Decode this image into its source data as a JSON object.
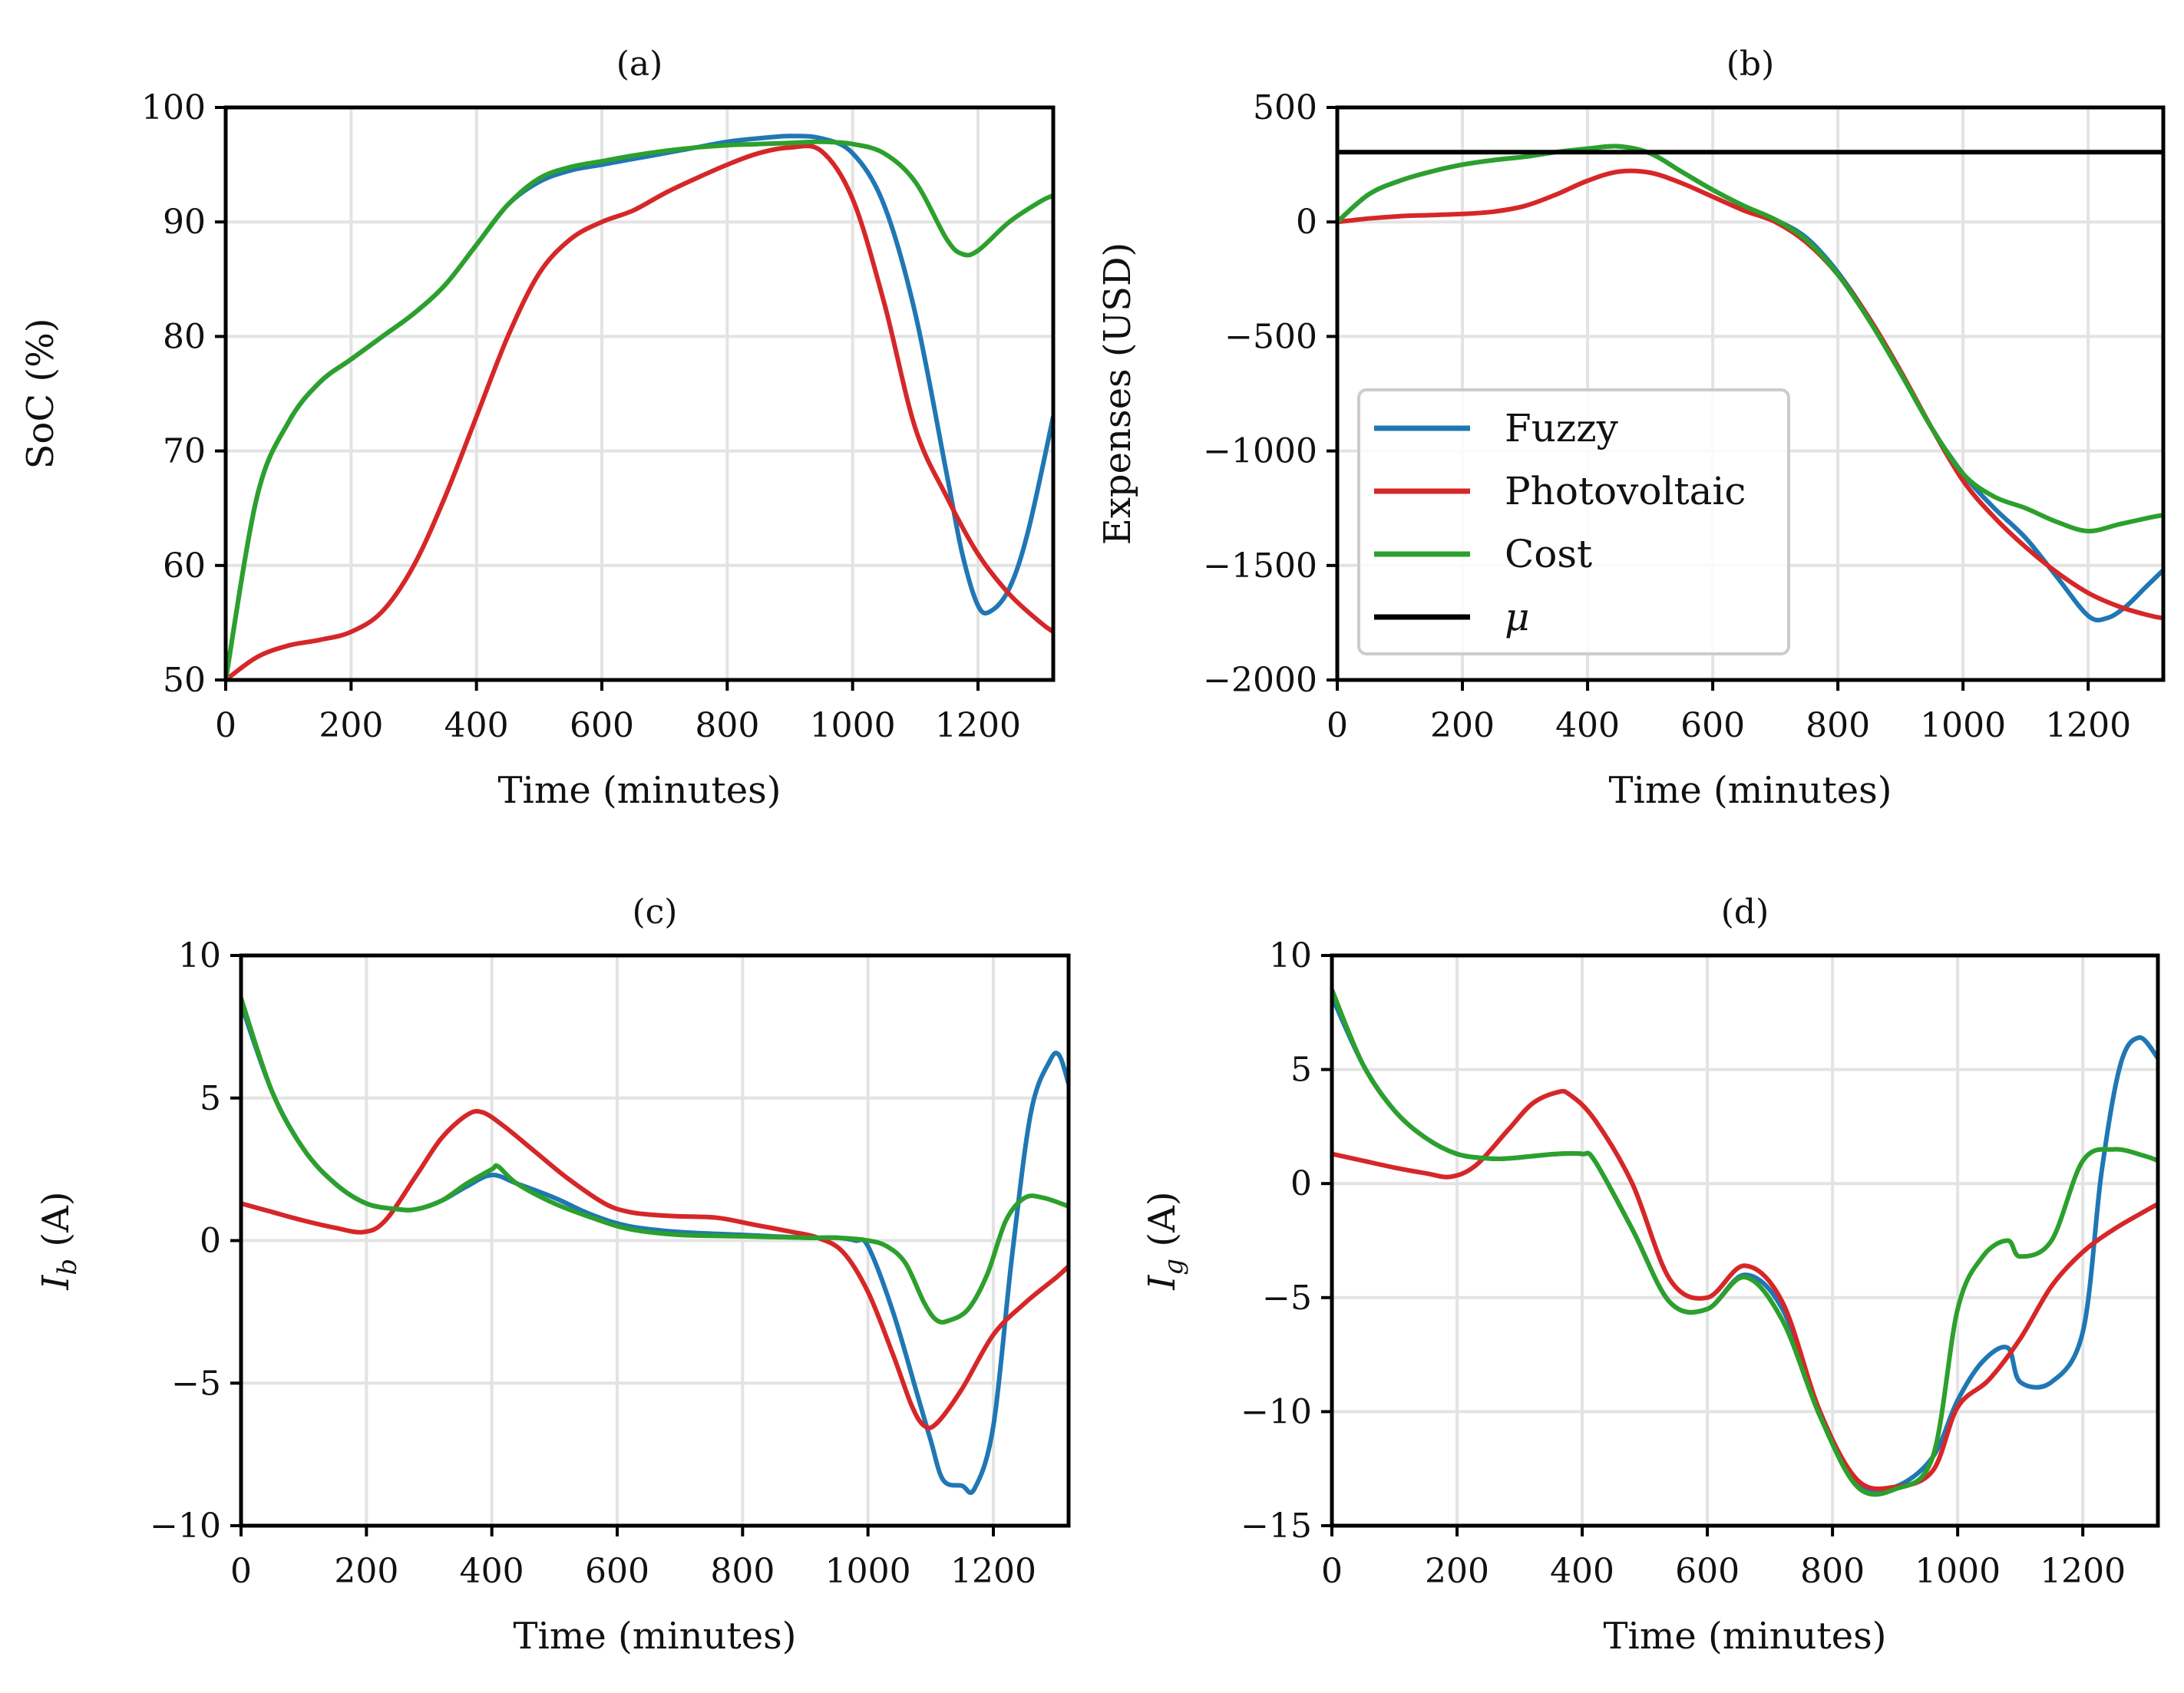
{
  "figure": {
    "type": "multi-panel line charts"
  },
  "colors": {
    "Fuzzy": "#1f77b4",
    "Photovoltaic": "#d62728",
    "Cost": "#2ca02c",
    "mu": "#000000"
  },
  "chart_data": [
    {
      "id": "a",
      "type": "line",
      "title": "(a)",
      "xlabel": "Time (minutes)",
      "ylabel": "SoC (%)",
      "xlim": [
        0,
        1320
      ],
      "ylim": [
        50,
        100
      ],
      "xticks": [
        0,
        200,
        400,
        600,
        800,
        1000,
        1200
      ],
      "yticks": [
        50,
        60,
        70,
        80,
        90,
        100
      ],
      "ytick_labels": [
        "50",
        "60",
        "70",
        "80",
        "90",
        "100"
      ],
      "grid": true,
      "series": [
        {
          "name": "Fuzzy",
          "color": "#1f77b4",
          "x": [
            0,
            50,
            100,
            150,
            200,
            250,
            300,
            350,
            400,
            450,
            500,
            550,
            600,
            650,
            700,
            750,
            800,
            850,
            900,
            950,
            1000,
            1050,
            1100,
            1150,
            1175,
            1200,
            1220,
            1250,
            1280,
            1320
          ],
          "y": [
            50,
            66,
            72.5,
            76,
            78,
            80,
            82,
            84.5,
            88,
            91.5,
            93.5,
            94.5,
            95,
            95.5,
            96,
            96.5,
            97,
            97.3,
            97.5,
            97.3,
            96,
            91.5,
            82,
            68,
            61,
            56.5,
            56,
            58,
            63,
            73
          ]
        },
        {
          "name": "Photovoltaic",
          "color": "#d62728",
          "x": [
            0,
            50,
            100,
            150,
            200,
            250,
            300,
            350,
            400,
            450,
            500,
            550,
            600,
            650,
            700,
            750,
            800,
            850,
            900,
            950,
            1000,
            1050,
            1100,
            1150,
            1200,
            1250,
            1300,
            1320
          ],
          "y": [
            50,
            52,
            53,
            53.5,
            54.2,
            56,
            60,
            66,
            73,
            80,
            85.5,
            88.5,
            90,
            91,
            92.5,
            93.8,
            95,
            96,
            96.5,
            96.2,
            92,
            83,
            72,
            66,
            61,
            57.5,
            55,
            54.2
          ]
        },
        {
          "name": "Cost",
          "color": "#2ca02c",
          "x": [
            0,
            50,
            100,
            150,
            200,
            250,
            300,
            350,
            400,
            450,
            500,
            550,
            600,
            650,
            700,
            750,
            800,
            850,
            900,
            950,
            1000,
            1050,
            1100,
            1150,
            1175,
            1200,
            1250,
            1300,
            1320
          ],
          "y": [
            50,
            66,
            72.5,
            76,
            78,
            80,
            82,
            84.5,
            88,
            91.5,
            93.8,
            94.8,
            95.3,
            95.8,
            96.2,
            96.5,
            96.7,
            96.8,
            96.9,
            97,
            96.8,
            96,
            93.5,
            88.5,
            87.2,
            87.5,
            90,
            91.8,
            92.3
          ]
        }
      ]
    },
    {
      "id": "b",
      "type": "line",
      "title": "(b)",
      "xlabel": "Time (minutes)",
      "ylabel": "Expenses (USD)",
      "xlim": [
        0,
        1320
      ],
      "ylim": [
        -2000,
        500
      ],
      "xticks": [
        0,
        200,
        400,
        600,
        800,
        1000,
        1200
      ],
      "yticks": [
        -2000,
        -1500,
        -1000,
        -500,
        0,
        500
      ],
      "ytick_labels": [
        "−2000",
        "−1500",
        "−1000",
        "−500",
        "0",
        "500"
      ],
      "grid": true,
      "legend": {
        "location": "lower-left",
        "entries": [
          "Fuzzy",
          "Photovoltaic",
          "Cost",
          "μ"
        ]
      },
      "series": [
        {
          "name": "Fuzzy",
          "color": "#1f77b4",
          "x": [
            0,
            50,
            100,
            150,
            200,
            250,
            300,
            350,
            400,
            450,
            500,
            550,
            600,
            650,
            700,
            750,
            800,
            850,
            900,
            950,
            1000,
            1050,
            1100,
            1150,
            1200,
            1230,
            1260,
            1290,
            1320
          ],
          "y": [
            0,
            120,
            180,
            220,
            250,
            270,
            285,
            305,
            320,
            330,
            300,
            220,
            140,
            70,
            10,
            -70,
            -220,
            -420,
            -650,
            -900,
            -1100,
            -1250,
            -1380,
            -1550,
            -1720,
            -1730,
            -1680,
            -1600,
            -1520
          ]
        },
        {
          "name": "Photovoltaic",
          "color": "#d62728",
          "x": [
            0,
            50,
            100,
            150,
            200,
            250,
            300,
            350,
            400,
            450,
            500,
            550,
            600,
            650,
            700,
            750,
            800,
            850,
            900,
            950,
            1000,
            1050,
            1100,
            1150,
            1200,
            1250,
            1300,
            1320
          ],
          "y": [
            0,
            15,
            25,
            30,
            35,
            45,
            70,
            120,
            180,
            220,
            215,
            170,
            110,
            50,
            0,
            -90,
            -230,
            -420,
            -650,
            -900,
            -1130,
            -1290,
            -1420,
            -1530,
            -1620,
            -1680,
            -1720,
            -1730
          ]
        },
        {
          "name": "Cost",
          "color": "#2ca02c",
          "x": [
            0,
            50,
            100,
            150,
            200,
            250,
            300,
            350,
            400,
            450,
            500,
            550,
            600,
            650,
            700,
            750,
            800,
            850,
            900,
            950,
            1000,
            1050,
            1100,
            1150,
            1200,
            1250,
            1300,
            1320
          ],
          "y": [
            0,
            120,
            180,
            220,
            250,
            270,
            285,
            305,
            320,
            330,
            300,
            220,
            140,
            70,
            10,
            -80,
            -230,
            -430,
            -660,
            -900,
            -1100,
            -1200,
            -1250,
            -1310,
            -1350,
            -1320,
            -1290,
            -1280
          ]
        },
        {
          "name": "μ",
          "color": "#000000",
          "x": [
            0,
            1320
          ],
          "y": [
            305,
            305
          ]
        }
      ]
    },
    {
      "id": "c",
      "type": "line",
      "title": "(c)",
      "xlabel": "Time (minutes)",
      "ylabel_main": "I",
      "ylabel_sub": "b",
      "ylabel_unit": " (A)",
      "xlim": [
        0,
        1320
      ],
      "ylim": [
        -10,
        10
      ],
      "xticks": [
        0,
        200,
        400,
        600,
        800,
        1000,
        1200
      ],
      "yticks": [
        -10,
        -5,
        0,
        5,
        10
      ],
      "ytick_labels": [
        "−10",
        "−5",
        "0",
        "5",
        "10"
      ],
      "grid": true,
      "series": [
        {
          "name": "Fuzzy",
          "color": "#1f77b4",
          "x": [
            0,
            50,
            100,
            150,
            200,
            250,
            280,
            320,
            360,
            400,
            440,
            500,
            560,
            620,
            700,
            800,
            900,
            950,
            980,
            1000,
            1040,
            1080,
            1100,
            1120,
            1150,
            1170,
            1200,
            1230,
            1260,
            1290,
            1305,
            1320
          ],
          "y": [
            8.3,
            5.2,
            3.2,
            2,
            1.3,
            1.1,
            1.1,
            1.4,
            1.9,
            2.3,
            2,
            1.5,
            0.9,
            0.5,
            0.3,
            0.2,
            0.1,
            0.1,
            0,
            -0.2,
            -2.5,
            -5.5,
            -7,
            -8.4,
            -8.6,
            -8.7,
            -6.5,
            -0.5,
            4.5,
            6.3,
            6.5,
            5.5
          ]
        },
        {
          "name": "Photovoltaic",
          "color": "#d62728",
          "x": [
            0,
            50,
            100,
            150,
            195,
            230,
            280,
            320,
            360,
            385,
            420,
            470,
            520,
            580,
            620,
            660,
            700,
            760,
            820,
            880,
            920,
            960,
            1000,
            1040,
            1070,
            1090,
            1110,
            1150,
            1200,
            1250,
            1300,
            1320
          ],
          "y": [
            1.3,
            1,
            0.7,
            0.45,
            0.3,
            0.7,
            2.3,
            3.6,
            4.4,
            4.5,
            4,
            3.1,
            2.2,
            1.3,
            1,
            0.9,
            0.85,
            0.8,
            0.55,
            0.3,
            0.1,
            -0.4,
            -1.8,
            -4,
            -5.8,
            -6.5,
            -6.4,
            -5.2,
            -3.3,
            -2.2,
            -1.3,
            -0.9
          ]
        },
        {
          "name": "Cost",
          "color": "#2ca02c",
          "x": [
            0,
            50,
            100,
            150,
            200,
            250,
            280,
            320,
            360,
            400,
            410,
            440,
            500,
            560,
            620,
            700,
            800,
            900,
            950,
            1000,
            1030,
            1060,
            1090,
            1110,
            1130,
            1160,
            1190,
            1220,
            1250,
            1280,
            1320
          ],
          "y": [
            8.5,
            5.2,
            3.2,
            2,
            1.3,
            1.1,
            1.1,
            1.4,
            2,
            2.5,
            2.6,
            2,
            1.3,
            0.8,
            0.4,
            0.2,
            0.15,
            0.1,
            0.1,
            0,
            -0.2,
            -0.8,
            -2.2,
            -2.8,
            -2.8,
            -2.4,
            -1.2,
            0.7,
            1.5,
            1.5,
            1.2
          ]
        }
      ]
    },
    {
      "id": "d",
      "type": "line",
      "title": "(d)",
      "xlabel": "Time (minutes)",
      "ylabel_main": "I",
      "ylabel_sub": "g",
      "ylabel_unit": " (A)",
      "xlim": [
        0,
        1320
      ],
      "ylim": [
        -15,
        10
      ],
      "xticks": [
        0,
        200,
        400,
        600,
        800,
        1000,
        1200
      ],
      "yticks": [
        -15,
        -10,
        -5,
        0,
        5,
        10
      ],
      "ytick_labels": [
        "−15",
        "−10",
        "−5",
        "0",
        "5",
        "10"
      ],
      "grid": true,
      "series": [
        {
          "name": "Fuzzy",
          "color": "#1f77b4",
          "x": [
            0,
            50,
            100,
            150,
            200,
            250,
            280,
            320,
            360,
            400,
            420,
            480,
            540,
            600,
            660,
            720,
            780,
            840,
            900,
            960,
            1000,
            1040,
            1080,
            1100,
            1150,
            1200,
            1230,
            1260,
            1290,
            1320
          ],
          "y": [
            8.2,
            5.2,
            3.2,
            2,
            1.3,
            1.1,
            1.1,
            1.2,
            1.3,
            1.3,
            1,
            -2,
            -5.2,
            -5.5,
            -4,
            -5.5,
            -10,
            -13.2,
            -13.3,
            -12,
            -9.5,
            -7.8,
            -7.2,
            -8.7,
            -8.7,
            -6.5,
            0.5,
            5.2,
            6.4,
            5.5
          ]
        },
        {
          "name": "Photovoltaic",
          "color": "#d62728",
          "x": [
            0,
            50,
            100,
            150,
            190,
            230,
            280,
            320,
            360,
            380,
            420,
            480,
            540,
            600,
            660,
            720,
            780,
            840,
            900,
            960,
            1000,
            1050,
            1100,
            1150,
            1200,
            1250,
            1300,
            1320
          ],
          "y": [
            1.3,
            1,
            0.7,
            0.45,
            0.3,
            0.8,
            2.3,
            3.5,
            4,
            3.9,
            2.8,
            0,
            -4.2,
            -5,
            -3.6,
            -5.2,
            -10,
            -13,
            -13.3,
            -12.6,
            -9.8,
            -8.6,
            -6.8,
            -4.5,
            -3,
            -2,
            -1.2,
            -0.9
          ]
        },
        {
          "name": "Cost",
          "color": "#2ca02c",
          "x": [
            0,
            50,
            100,
            150,
            200,
            250,
            280,
            320,
            360,
            400,
            420,
            480,
            540,
            600,
            660,
            720,
            780,
            840,
            900,
            960,
            1000,
            1040,
            1080,
            1100,
            1150,
            1200,
            1250,
            1300,
            1320
          ],
          "y": [
            8.5,
            5.2,
            3.2,
            2,
            1.3,
            1.1,
            1.1,
            1.2,
            1.3,
            1.3,
            1,
            -2,
            -5.2,
            -5.5,
            -4.1,
            -6,
            -10.2,
            -13.3,
            -13.4,
            -12,
            -5.5,
            -3.2,
            -2.5,
            -3.2,
            -2.5,
            1,
            1.5,
            1.2,
            1
          ]
        }
      ]
    }
  ]
}
